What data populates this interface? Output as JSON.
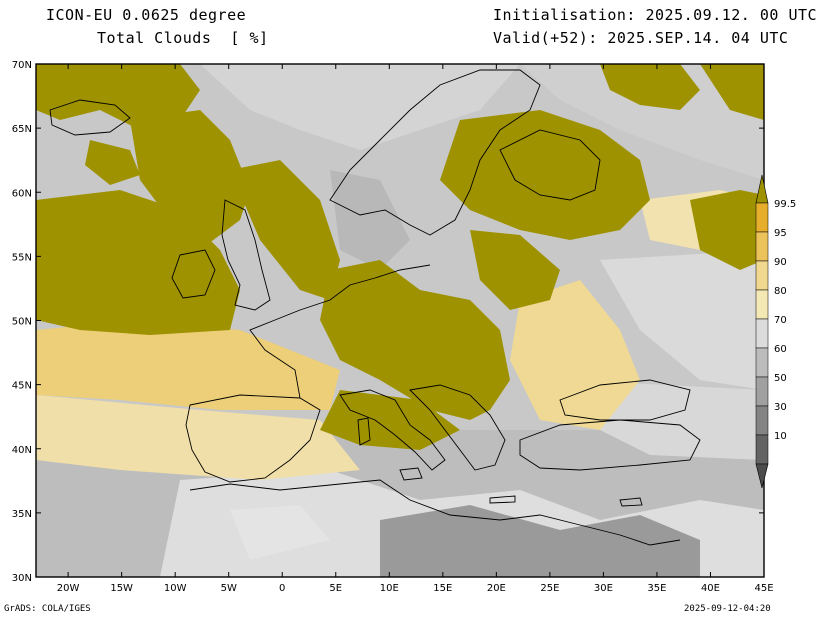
{
  "header": {
    "model": "ICON-EU 0.0625 degree",
    "variable": "Total Clouds  [ %]",
    "init": "Initialisation: 2025.09.12. 00 UTC",
    "valid": "Valid(+52): 2025.SEP.14. 04 UTC"
  },
  "map": {
    "lon_labels": [
      "20W",
      "15W",
      "10W",
      "5W",
      "0",
      "5E",
      "10E",
      "15E",
      "20E",
      "25E",
      "30E",
      "35E",
      "40E",
      "45E"
    ],
    "lat_labels": [
      "70N",
      "65N",
      "60N",
      "55N",
      "50N",
      "45N",
      "40N",
      "35N",
      "30N"
    ],
    "lon_range": [
      -23,
      45
    ],
    "lat_range": [
      30,
      70
    ]
  },
  "colorbar": {
    "labels": [
      "99.5",
      "95",
      "90",
      "80",
      "70",
      "60",
      "50",
      "30",
      "10"
    ],
    "colors": [
      "#e6ae2a",
      "#ecc25a",
      "#f0d88e",
      "#f4e8b4",
      "#dcdcdc",
      "#bcbcbc",
      "#a0a0a0",
      "#848484",
      "#646464"
    ],
    "over_color": "#9e9200"
  },
  "footer": {
    "software": "GrADS: COLA/IGES",
    "timestamp": "2025-09-12-04:20"
  },
  "colors": {
    "full_cloud": "#9e9200",
    "clear": "#e2e2e2"
  }
}
